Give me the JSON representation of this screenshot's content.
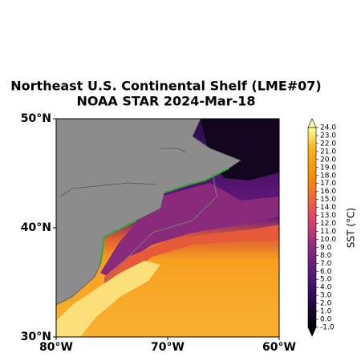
{
  "title": "Northeast U.S. Continental Shelf (LME#07)",
  "subtitle": "NOAA STAR 2024-Mar-18",
  "map": {
    "lat_ticks": [
      {
        "value": 50,
        "label": "50°N"
      },
      {
        "value": 40,
        "label": "40°N"
      },
      {
        "value": 30,
        "label": "30°N"
      }
    ],
    "lon_ticks": [
      {
        "value": -80,
        "label": "80°W"
      },
      {
        "value": -70,
        "label": "70°W"
      },
      {
        "value": -60,
        "label": "60°W"
      }
    ],
    "latlim": [
      30,
      50
    ],
    "lonlim": [
      -80,
      -60
    ]
  },
  "colorbar": {
    "label": "SST (°C)",
    "lim": [
      -1,
      24
    ],
    "ticks": [
      {
        "value": -1,
        "label": "-1.0"
      },
      {
        "value": 0,
        "label": "0.0"
      },
      {
        "value": 1,
        "label": "1.0"
      },
      {
        "value": 2,
        "label": "2.0"
      },
      {
        "value": 3,
        "label": "3.0"
      },
      {
        "value": 4,
        "label": "4.0"
      },
      {
        "value": 5,
        "label": "5.0"
      },
      {
        "value": 6,
        "label": "6.0"
      },
      {
        "value": 7,
        "label": "7.0"
      },
      {
        "value": 8,
        "label": "8.0"
      },
      {
        "value": 9,
        "label": "9.0"
      },
      {
        "value": 10,
        "label": "10.0"
      },
      {
        "value": 11,
        "label": "11.0"
      },
      {
        "value": 12,
        "label": "12.0"
      },
      {
        "value": 13,
        "label": "13.0"
      },
      {
        "value": 14,
        "label": "14.0"
      },
      {
        "value": 15,
        "label": "15.0"
      },
      {
        "value": 16,
        "label": "16.0"
      },
      {
        "value": 17,
        "label": "17.0"
      },
      {
        "value": 18,
        "label": "18.0"
      },
      {
        "value": 19,
        "label": "19.0"
      },
      {
        "value": 20,
        "label": "20.0"
      },
      {
        "value": 21,
        "label": "21.0"
      },
      {
        "value": 22,
        "label": "22.0"
      },
      {
        "value": 23,
        "label": "23.0"
      },
      {
        "value": 24,
        "label": "24.0"
      }
    ]
  }
}
